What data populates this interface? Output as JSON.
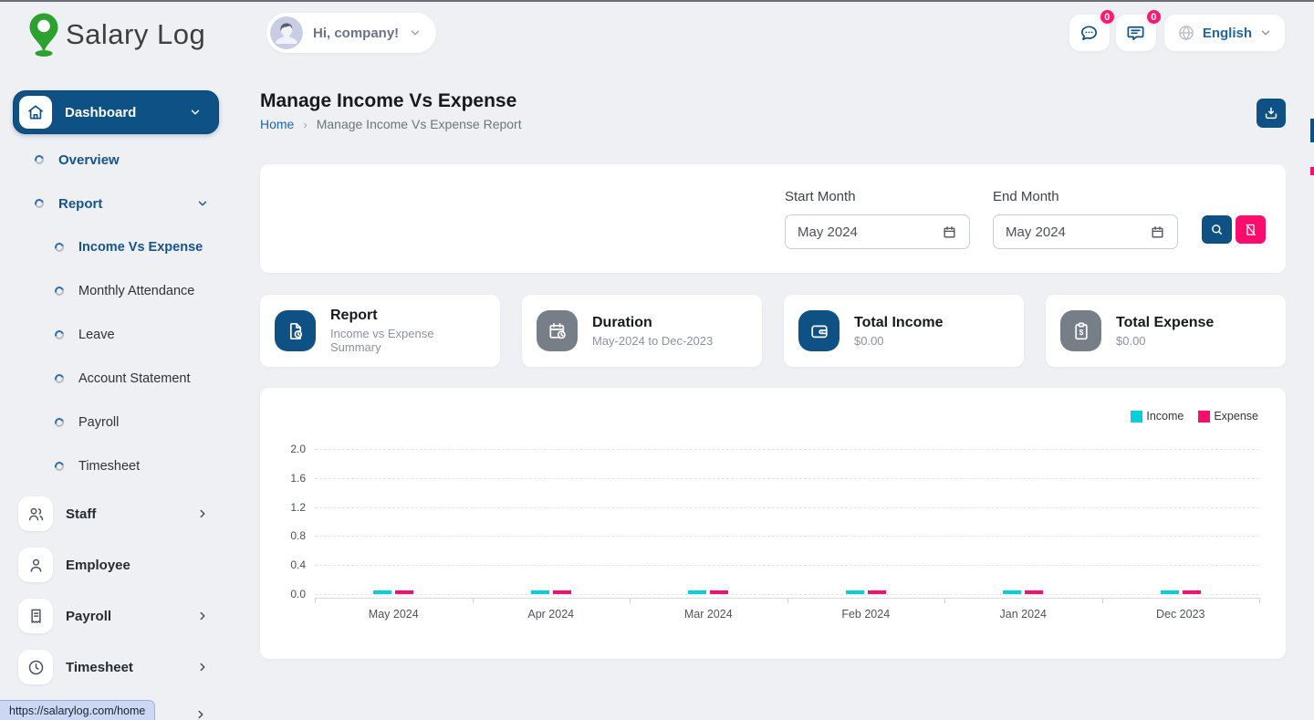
{
  "window": {
    "status_url": "https://salarylog.com/home"
  },
  "brand": {
    "name": "Salary Log"
  },
  "header": {
    "greeting": "Hi, company!",
    "chat_badge": "0",
    "messages_badge": "0",
    "language": "English"
  },
  "sidebar": {
    "dashboard_label": "Dashboard",
    "items": [
      {
        "label": "Overview",
        "type": "top",
        "active": true
      },
      {
        "label": "Report",
        "type": "top",
        "active": true,
        "chevron": "down"
      },
      {
        "label": "Income Vs Expense",
        "type": "sub",
        "active": true
      },
      {
        "label": "Monthly Attendance",
        "type": "sub",
        "active": false
      },
      {
        "label": "Leave",
        "type": "sub",
        "active": false
      },
      {
        "label": "Account Statement",
        "type": "sub",
        "active": false
      },
      {
        "label": "Payroll",
        "type": "sub",
        "active": false
      },
      {
        "label": "Timesheet",
        "type": "sub",
        "active": false
      },
      {
        "label": "Staff",
        "type": "section",
        "icon": "users",
        "chevron": "right"
      },
      {
        "label": "Employee",
        "type": "section",
        "icon": "user",
        "chevron": ""
      },
      {
        "label": "Payroll",
        "type": "section",
        "icon": "receipt",
        "chevron": "right"
      },
      {
        "label": "Timesheet",
        "type": "section",
        "icon": "clock",
        "chevron": "right"
      }
    ]
  },
  "page": {
    "title": "Manage Income Vs Expense",
    "breadcrumb_home": "Home",
    "breadcrumb_current": "Manage Income Vs Expense Report"
  },
  "filters": {
    "start_label": "Start Month",
    "start_value": "May 2024",
    "end_label": "End Month",
    "end_value": "May 2024"
  },
  "summary_cards": [
    {
      "title": "Report",
      "subtitle": "Income vs Expense Summary",
      "icon": "file-clock",
      "bg": "#0e5185"
    },
    {
      "title": "Duration",
      "subtitle": "May-2024 to Dec-2023",
      "icon": "calendar-clock",
      "bg": "#767e88"
    },
    {
      "title": "Total Income",
      "subtitle": "$0.00",
      "icon": "wallet",
      "bg": "#0e5185"
    },
    {
      "title": "Total Expense",
      "subtitle": "$0.00",
      "icon": "clipboard-dollar",
      "bg": "#767e88"
    }
  ],
  "chart_data": {
    "type": "bar",
    "title": "",
    "xlabel": "",
    "ylabel": "",
    "categories": [
      "May 2024",
      "Apr 2024",
      "Mar 2024",
      "Feb 2024",
      "Jan 2024",
      "Dec 2023"
    ],
    "series": [
      {
        "name": "Income",
        "color": "#04cfdd",
        "values": [
          0,
          0,
          0,
          0,
          0,
          0
        ]
      },
      {
        "name": "Expense",
        "color": "#fa0d6c",
        "values": [
          0,
          0,
          0,
          0,
          0,
          0
        ]
      }
    ],
    "ylim": [
      0,
      2
    ],
    "yticks": [
      0,
      0.4,
      0.8,
      1.2,
      1.6,
      2
    ],
    "grid": "horizontal-dashed",
    "legend_position": "top-right"
  },
  "colors": {
    "primary": "#0e5185",
    "pink": "#fa0d6c",
    "cyan": "#04cfdd",
    "link": "#2166a5",
    "logo_green": "#2da12e"
  }
}
